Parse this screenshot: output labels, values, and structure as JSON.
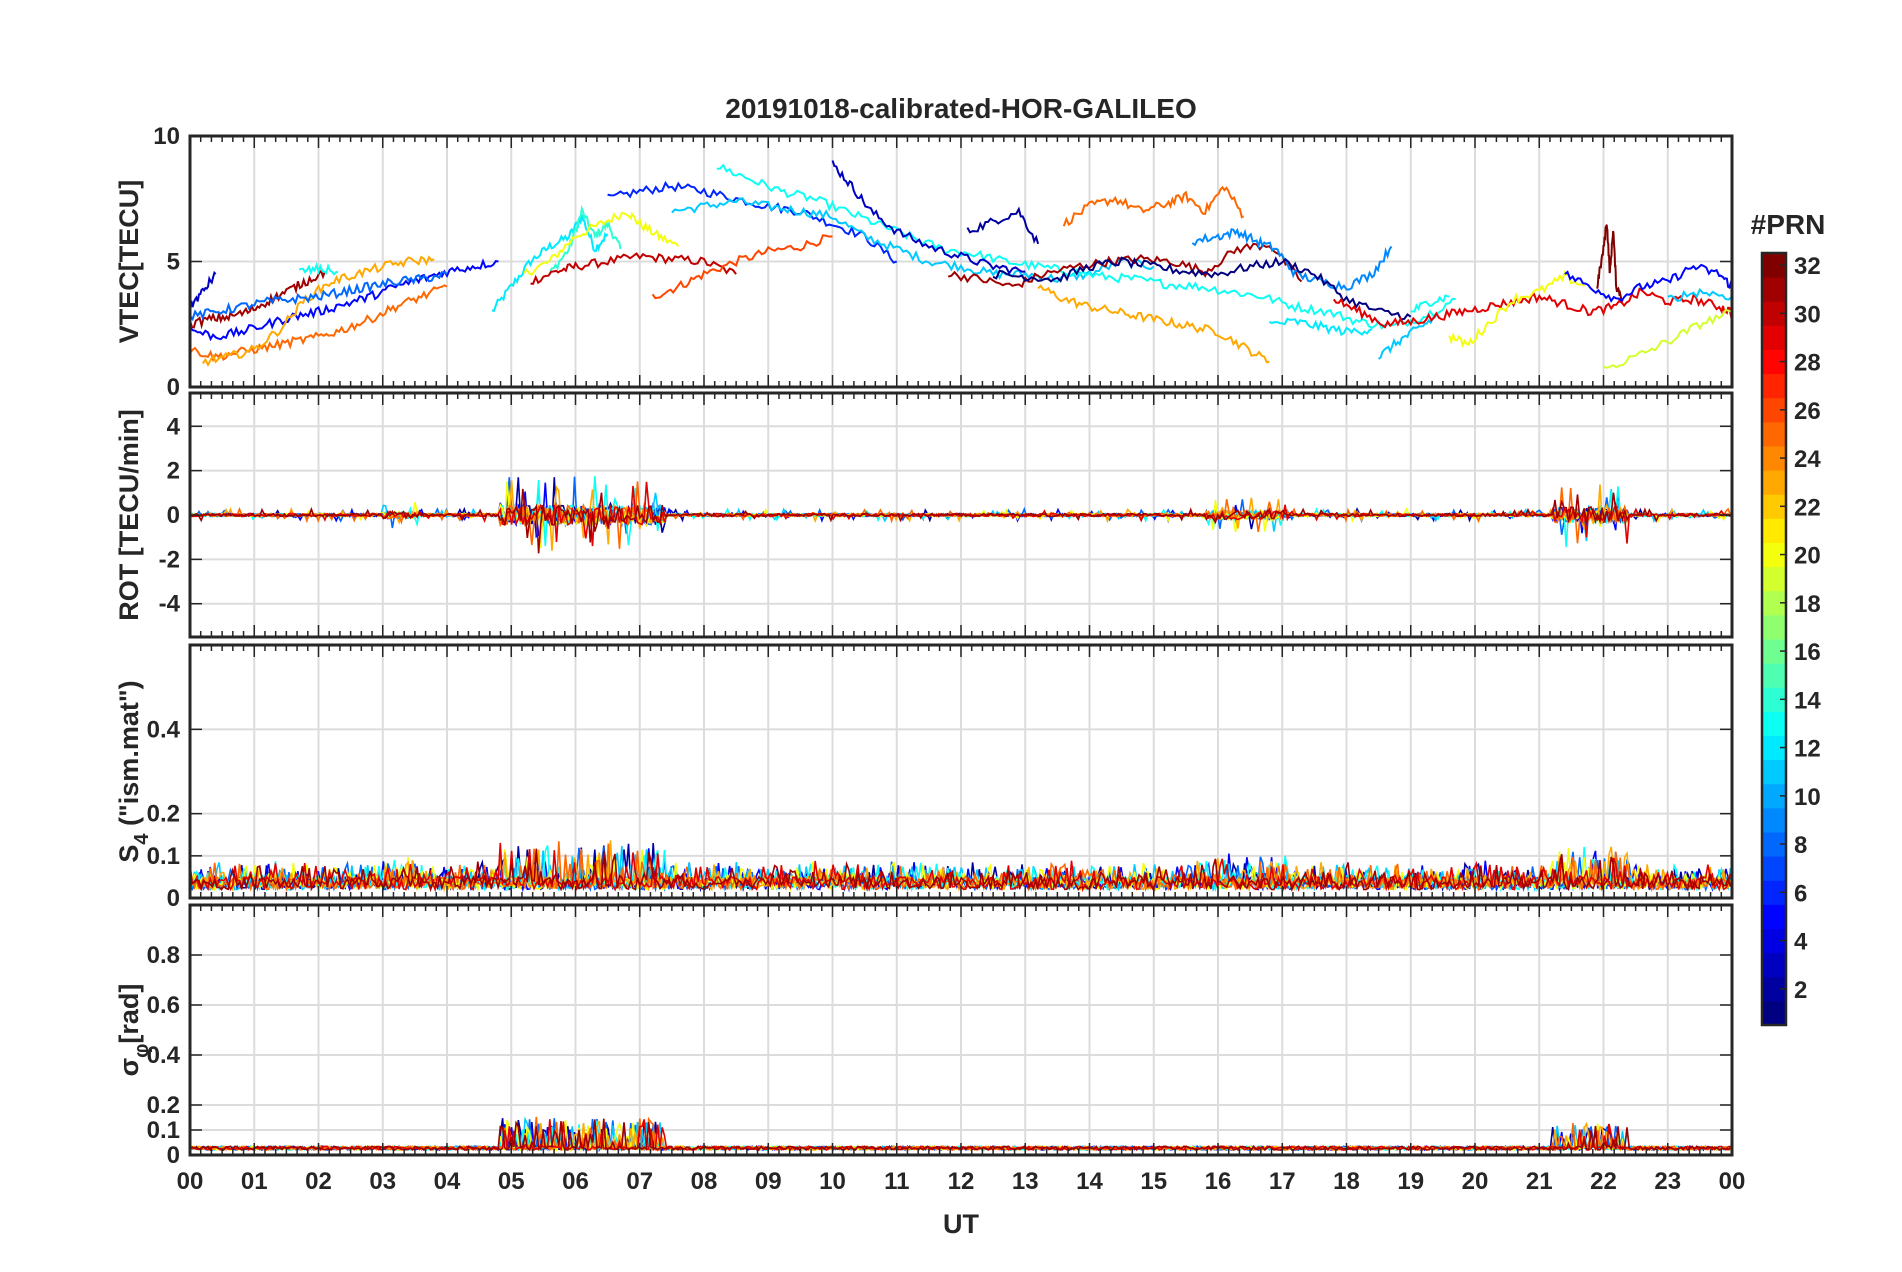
{
  "chart_data": [
    {
      "type": "line",
      "title": "20191018-calibrated-HOR-GALILEO",
      "ylabel": "VTEC[TECU]",
      "ylim": [
        0,
        10
      ],
      "yticks": [
        0,
        5,
        10
      ],
      "xlim": [
        0,
        24
      ],
      "grid": true,
      "series": [
        {
          "prn": 12,
          "x": [
            4.7,
            5.0,
            5.3,
            5.6,
            5.9,
            6.1,
            6.3,
            6.5
          ],
          "y": [
            3.0,
            4.0,
            5.0,
            5.6,
            6.0,
            6.8,
            5.5,
            6.1
          ]
        },
        {
          "prn": 14,
          "x": [
            5.6,
            5.9,
            6.1,
            6.3,
            6.5,
            6.7
          ],
          "y": [
            4.5,
            5.5,
            7.0,
            6.0,
            6.5,
            5.5
          ]
        },
        {
          "prn": 20,
          "x": [
            5.2,
            5.6,
            6.0,
            6.4,
            6.8,
            7.0,
            7.3,
            7.6
          ],
          "y": [
            4.5,
            5.0,
            6.0,
            6.5,
            7.0,
            6.5,
            6.0,
            5.6
          ]
        },
        {
          "prn": 30,
          "x": [
            5.3,
            5.7,
            6.0,
            6.5,
            7.0,
            7.5,
            8.0,
            8.5
          ],
          "y": [
            4.2,
            4.6,
            4.8,
            5.0,
            5.2,
            5.1,
            5.0,
            4.5
          ]
        },
        {
          "prn": 26,
          "x": [
            7.2,
            7.6,
            8.0,
            8.5,
            9.0,
            9.5,
            10.0
          ],
          "y": [
            3.6,
            4.0,
            4.5,
            5.0,
            5.4,
            5.6,
            6.0
          ]
        },
        {
          "prn": 6,
          "x": [
            6.5,
            7.0,
            7.5,
            8.0,
            8.5,
            9.0,
            9.5,
            10.0,
            10.5,
            11.0
          ],
          "y": [
            7.5,
            7.8,
            8.0,
            7.8,
            7.5,
            7.2,
            7.0,
            6.5,
            6.0,
            5.0
          ]
        },
        {
          "prn": 11,
          "x": [
            7.5,
            8.0,
            8.5,
            9.0,
            9.5,
            10.0,
            10.5,
            11.0,
            11.5,
            12.0,
            12.5,
            13.0,
            13.5,
            14.0,
            14.5,
            15.0
          ],
          "y": [
            7.0,
            7.2,
            7.4,
            7.2,
            7.0,
            6.8,
            6.0,
            5.5,
            5.0,
            4.8,
            4.5,
            4.5,
            4.3,
            4.5,
            5.0,
            4.8
          ]
        },
        {
          "prn": 13,
          "x": [
            8.2,
            8.7,
            9.2,
            9.7,
            10.2,
            10.7,
            11.2,
            11.7,
            12.2,
            12.7,
            13.2,
            13.7,
            14.2,
            14.7,
            15.2,
            15.7,
            16.2,
            16.7,
            17.2,
            17.7,
            18.2,
            18.7,
            19.2,
            19.7
          ],
          "y": [
            8.8,
            8.3,
            7.8,
            7.5,
            7.0,
            6.5,
            6.0,
            5.5,
            5.3,
            5.0,
            4.8,
            4.6,
            4.4,
            4.3,
            4.1,
            4.0,
            3.8,
            3.6,
            3.2,
            3.0,
            2.6,
            2.4,
            2.8,
            3.5
          ]
        },
        {
          "prn": 3,
          "x": [
            10.0,
            10.3,
            10.6,
            11.0,
            11.5,
            12.0,
            12.5,
            13.0
          ],
          "y": [
            8.9,
            8.0,
            7.0,
            6.2,
            5.6,
            5.2,
            4.8,
            4.6
          ]
        },
        {
          "prn": 2,
          "x": [
            12.1,
            12.5,
            12.9,
            13.2
          ],
          "y": [
            6.2,
            6.6,
            7.0,
            5.7
          ]
        },
        {
          "prn": 25,
          "x": [
            13.6,
            14.0,
            14.4,
            14.8,
            15.2,
            15.5,
            15.8,
            16.1,
            16.4
          ],
          "y": [
            6.5,
            7.2,
            7.5,
            7.0,
            7.3,
            7.6,
            7.0,
            8.0,
            6.8
          ]
        },
        {
          "prn": 31,
          "x": [
            11.8,
            12.3,
            12.8,
            13.3,
            13.8,
            14.3,
            14.8,
            15.3,
            15.8,
            16.3,
            16.8,
            17.3
          ],
          "y": [
            4.5,
            4.3,
            4.0,
            4.5,
            4.8,
            5.0,
            5.1,
            5.0,
            4.6,
            5.5,
            5.7,
            4.2
          ]
        },
        {
          "prn": 23,
          "x": [
            13.2,
            13.6,
            14.0,
            14.4,
            14.8,
            15.2,
            15.6,
            16.0,
            16.4,
            16.8
          ],
          "y": [
            4.0,
            3.5,
            3.2,
            3.0,
            2.8,
            2.6,
            2.4,
            2.2,
            1.6,
            1.0
          ]
        },
        {
          "prn": 9,
          "x": [
            15.6,
            16.0,
            16.3,
            16.6,
            16.9,
            17.2,
            17.6,
            18.0,
            18.4,
            18.7
          ],
          "y": [
            5.8,
            6.0,
            6.2,
            5.8,
            5.5,
            4.5,
            4.2,
            4.0,
            4.5,
            5.6
          ]
        },
        {
          "prn": 1,
          "x": [
            12.5,
            13.0,
            13.5,
            14.0,
            14.5,
            15.0,
            15.5,
            16.0,
            16.5,
            17.0,
            17.5,
            18.0,
            18.5,
            19.0
          ],
          "y": [
            4.5,
            4.4,
            4.3,
            4.8,
            5.0,
            4.8,
            4.6,
            4.5,
            4.8,
            5.0,
            4.5,
            3.5,
            3.0,
            2.8
          ]
        },
        {
          "prn": 12,
          "x": [
            16.8,
            17.2,
            17.6,
            18.0,
            18.4
          ],
          "y": [
            2.5,
            2.6,
            2.4,
            2.2,
            2.3
          ]
        },
        {
          "prn": 11,
          "x": [
            18.5,
            18.8,
            19.1,
            19.4
          ],
          "y": [
            1.2,
            1.8,
            2.3,
            2.8
          ]
        },
        {
          "prn": 13,
          "x": [
            19.0,
            19.3,
            19.6
          ],
          "y": [
            3.0,
            3.4,
            3.6
          ]
        },
        {
          "prn": 29,
          "x": [
            17.8,
            18.2,
            18.6,
            19.0,
            19.4,
            19.8,
            20.2,
            20.6,
            21.0,
            21.4,
            21.8,
            22.2,
            22.6,
            23.0,
            23.4,
            23.8,
            24.0
          ],
          "y": [
            3.5,
            3.0,
            2.5,
            2.6,
            2.8,
            3.0,
            3.2,
            3.4,
            3.6,
            3.3,
            3.0,
            3.2,
            3.8,
            3.4,
            3.5,
            3.2,
            3.0
          ]
        },
        {
          "prn": 20,
          "x": [
            19.6,
            19.9,
            20.2,
            20.6,
            21.0,
            21.4,
            21.7
          ],
          "y": [
            2.0,
            1.7,
            2.5,
            3.5,
            3.8,
            4.4,
            4.0
          ]
        },
        {
          "prn": 32,
          "x": [
            21.9,
            22.0,
            22.05,
            22.1,
            22.15,
            22.2,
            22.3
          ],
          "y": [
            4.0,
            5.5,
            6.6,
            4.5,
            6.3,
            4.0,
            3.5
          ]
        },
        {
          "prn": 5,
          "x": [
            21.4,
            21.8,
            22.2,
            22.6,
            23.0,
            23.4,
            23.8,
            24.0
          ],
          "y": [
            4.5,
            4.0,
            3.5,
            4.0,
            4.2,
            4.8,
            4.5,
            4.0
          ]
        },
        {
          "prn": 19,
          "x": [
            22.0,
            22.5,
            23.0,
            23.5,
            24.0
          ],
          "y": [
            0.7,
            1.2,
            1.8,
            2.5,
            3.0
          ]
        },
        {
          "prn": 11,
          "x": [
            23.0,
            23.5,
            24.0
          ],
          "y": [
            3.5,
            3.8,
            3.6
          ]
        },
        {
          "prn": 5,
          "x": [
            0.0,
            0.4,
            0.8,
            1.2,
            1.6,
            2.0,
            2.4,
            2.8,
            3.2,
            3.6,
            4.0,
            4.4,
            4.8
          ],
          "y": [
            2.3,
            2.0,
            2.2,
            2.5,
            2.8,
            3.0,
            3.3,
            3.6,
            4.0,
            4.3,
            4.6,
            4.8,
            5.0
          ]
        },
        {
          "prn": 25,
          "x": [
            0.0,
            0.4,
            0.8,
            1.2,
            1.6,
            2.0,
            2.4,
            2.8,
            3.2,
            3.6,
            4.0
          ],
          "y": [
            1.5,
            1.2,
            1.4,
            1.6,
            1.8,
            2.0,
            2.3,
            2.7,
            3.2,
            3.6,
            4.0
          ]
        },
        {
          "prn": 23,
          "x": [
            0.2,
            0.6,
            1.0,
            1.4,
            1.8,
            2.2,
            2.6,
            3.0,
            3.4,
            3.8
          ],
          "y": [
            1.0,
            1.2,
            1.5,
            2.3,
            3.5,
            4.2,
            4.5,
            4.8,
            5.0,
            5.1
          ]
        },
        {
          "prn": 31,
          "x": [
            0.0,
            0.3,
            0.6,
            0.9,
            1.2,
            1.5,
            1.8,
            2.1
          ],
          "y": [
            2.5,
            2.7,
            2.8,
            3.0,
            3.4,
            3.8,
            4.2,
            4.6
          ]
        },
        {
          "prn": 8,
          "x": [
            0.0,
            0.4,
            0.8,
            1.2,
            1.6,
            2.0,
            2.4,
            2.8,
            3.2,
            3.6,
            4.0
          ],
          "y": [
            2.8,
            3.0,
            3.2,
            3.4,
            3.5,
            3.6,
            3.8,
            4.0,
            4.2,
            4.3,
            4.5
          ]
        },
        {
          "prn": 13,
          "x": [
            1.7,
            2.0,
            2.3
          ],
          "y": [
            4.6,
            4.7,
            4.6
          ]
        },
        {
          "prn": 3,
          "x": [
            0.0,
            0.2,
            0.4
          ],
          "y": [
            3.2,
            3.8,
            4.5
          ]
        }
      ]
    },
    {
      "type": "line",
      "ylabel": "ROT [TECU/min]",
      "ylim": [
        -5.5,
        5.5
      ],
      "yticks": [
        -4,
        -2,
        0,
        2,
        4
      ],
      "xlim": [
        0,
        24
      ],
      "grid": true
    },
    {
      "type": "line",
      "ylabel": "S",
      "ylabel_sub": "4",
      "ylabel_suffix": " (\"ism.mat\")",
      "ylim": [
        0,
        0.6
      ],
      "yticks": [
        0,
        0.1,
        0.2,
        0.4
      ],
      "xlim": [
        0,
        24
      ],
      "grid": true
    },
    {
      "type": "line",
      "ylabel": "σ",
      "ylabel_sub": "φ",
      "ylabel_suffix": "[rad]",
      "ylim": [
        0,
        1
      ],
      "yticks": [
        0,
        0.1,
        0.2,
        0.4,
        0.6,
        0.8
      ],
      "xlim": [
        0,
        24
      ],
      "grid": true
    }
  ],
  "xaxis": {
    "label": "UT",
    "ticks": [
      "00",
      "01",
      "02",
      "03",
      "04",
      "05",
      "06",
      "07",
      "08",
      "09",
      "10",
      "11",
      "12",
      "13",
      "14",
      "15",
      "16",
      "17",
      "18",
      "19",
      "20",
      "21",
      "22",
      "23",
      "00"
    ]
  },
  "colorbar": {
    "title": "#PRN",
    "min": 1,
    "max": 32,
    "ticks": [
      2,
      4,
      6,
      8,
      10,
      12,
      14,
      16,
      18,
      20,
      22,
      24,
      26,
      28,
      30,
      32
    ],
    "colormap": "jet"
  }
}
